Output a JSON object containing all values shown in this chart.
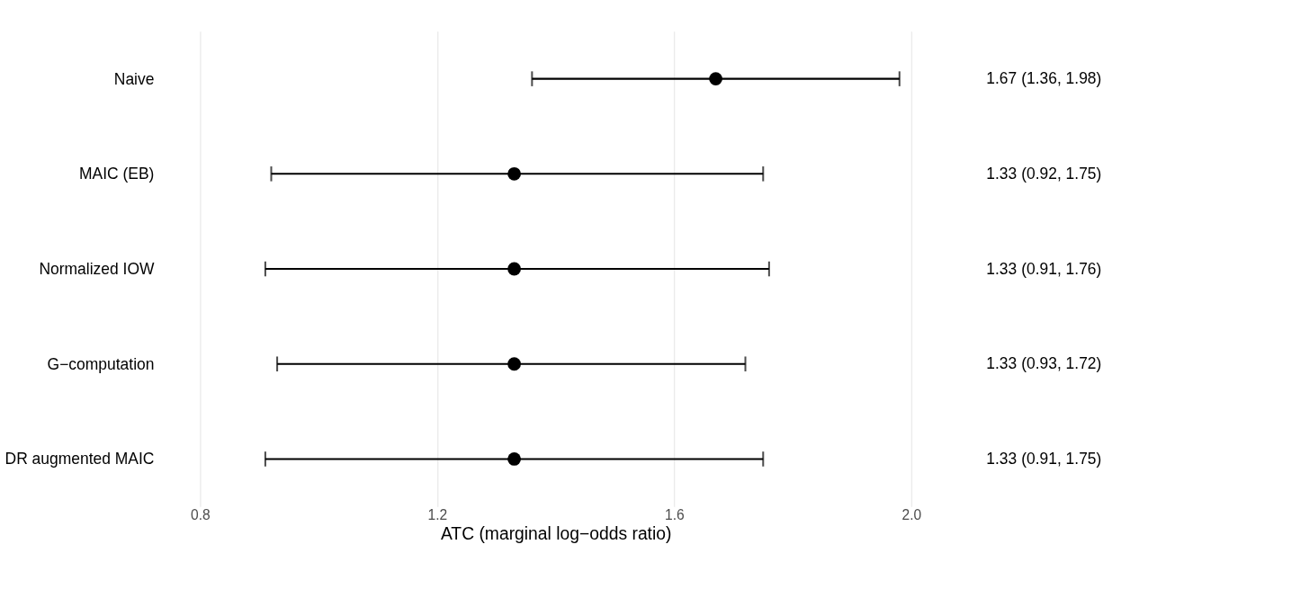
{
  "chart_data": {
    "type": "scatter",
    "orientation": "horizontal",
    "xlabel": "ATC (marginal log−odds ratio)",
    "categories": [
      "Naive",
      "MAIC (EB)",
      "Normalized IOW",
      "G−computation",
      "DR augmented MAIC"
    ],
    "values": [
      1.67,
      1.33,
      1.33,
      1.33,
      1.33
    ],
    "errors": [
      [
        1.36,
        1.98
      ],
      [
        0.92,
        1.75
      ],
      [
        0.91,
        1.76
      ],
      [
        0.93,
        1.72
      ],
      [
        0.91,
        1.75
      ]
    ],
    "value_labels": [
      "1.67 (1.36, 1.98)",
      "1.33 (0.92, 1.75)",
      "1.33 (0.91, 1.76)",
      "1.33 (0.93, 1.72)",
      "1.33 (0.91, 1.75)"
    ],
    "color": "#000000",
    "marker": "circle",
    "grid": "x",
    "xlim": [
      0.8,
      2.0
    ],
    "xticks": [
      0.8,
      1.2,
      1.6,
      {
        "value": 2.0,
        "label": "2.0"
      }
    ]
  }
}
